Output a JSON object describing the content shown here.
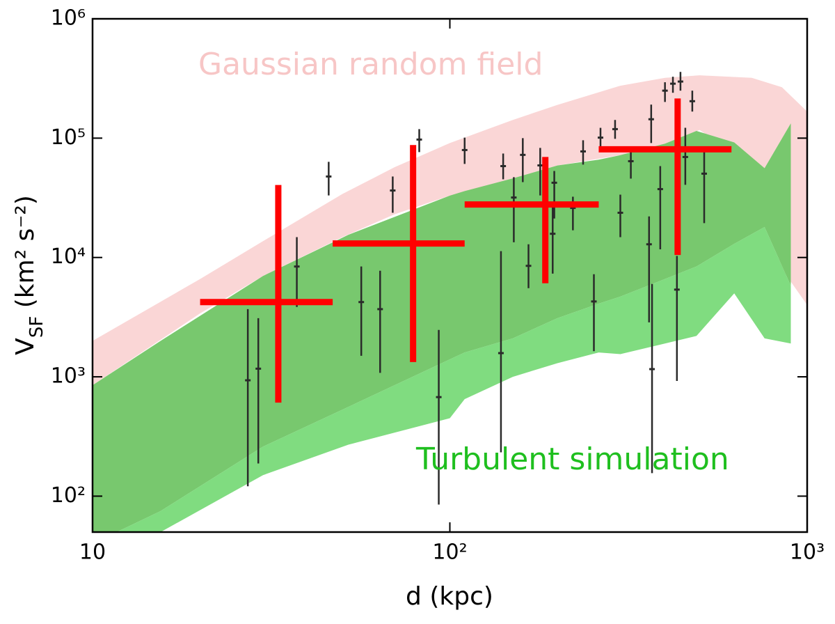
{
  "chart_data": {
    "type": "scatter",
    "x_label": "d (kpc)",
    "y_label": "V",
    "y_label_sub": "SF",
    "y_label_rest": " (km² s⁻²)",
    "log_scale": true,
    "xlim": [
      10,
      1000
    ],
    "ylim": [
      50,
      1000000
    ],
    "xticks": [
      10,
      {
        "value": 100,
        "label": "10²"
      },
      {
        "value": 1000,
        "label": "10³"
      }
    ],
    "yticks": [
      {
        "value": 100,
        "label": "10²"
      },
      {
        "value": 1000,
        "label": "10³"
      },
      {
        "value": 10000,
        "label": "10⁴"
      },
      {
        "value": 100000,
        "label": "10⁵"
      },
      {
        "value": 1000000,
        "label": "10⁶"
      }
    ],
    "annotations": [
      {
        "text": "Gaussian random field",
        "color": "#f7c6c6"
      },
      {
        "text": "Turbulent simulation",
        "color": "#1fbf1f"
      }
    ],
    "bands": [
      {
        "color": "#fad6d6",
        "x": [
          10,
          20,
          30,
          50,
          70,
          100,
          150,
          200,
          300,
          400,
          500,
          700,
          850,
          1000
        ],
        "upper": [
          2000,
          6600,
          13700,
          34000,
          57000,
          91000,
          142000,
          190000,
          275000,
          320000,
          336000,
          320000,
          267000,
          167000
        ],
        "lower": [
          850,
          3400,
          7000,
          14800,
          23000,
          33000,
          46000,
          59000,
          72000,
          90000,
          117000,
          60000,
          8000,
          4000
        ]
      },
      {
        "color": "#78c86e",
        "x": [
          10,
          15.5,
          30,
          52,
          100,
          110,
          150,
          200,
          261,
          300,
          400,
          490,
          625,
          760,
          900
        ],
        "upper": [
          850,
          2000,
          7000,
          15500,
          33000,
          36000,
          46000,
          59000,
          66000,
          72000,
          90000,
          115000,
          92000,
          56000,
          133000
        ],
        "lower": [
          40,
          75,
          260,
          560,
          1400,
          1600,
          2100,
          3100,
          4100,
          4700,
          6600,
          8400,
          13000,
          18000,
          5800
        ]
      },
      {
        "color": "#80dc80",
        "x": [
          10,
          15.5,
          30,
          52,
          100,
          110,
          150,
          200,
          261,
          300,
          400,
          490,
          625,
          760,
          900
        ],
        "upper": [
          40,
          75,
          260,
          560,
          1400,
          1600,
          2100,
          3100,
          4100,
          4700,
          6600,
          8400,
          13000,
          18000,
          5800
        ],
        "lower": [
          25,
          50,
          150,
          270,
          450,
          650,
          1000,
          1300,
          1600,
          1550,
          1900,
          2200,
          5000,
          2100,
          1900
        ]
      }
    ],
    "series": [
      {
        "color": "#2a2a2a",
        "x": [
          27.2,
          29.1,
          37.3,
          45.8,
          56.5,
          63.8,
          69.2,
          82.1,
          93.1,
          110,
          139,
          141,
          151,
          160,
          166,
          179,
          194,
          196,
          221,
          236,
          253,
          264,
          290,
          300,
          321,
          361,
          366,
          368,
          388,
          400,
          421,
          432,
          442,
          456,
          477,
          515
        ],
        "values": [
          935,
          1170,
          8400,
          47700,
          4230,
          3690,
          36400,
          97300,
          676,
          79500,
          1580,
          58300,
          31800,
          72400,
          8510,
          59100,
          15800,
          42300,
          26000,
          77400,
          4280,
          101000,
          119000,
          23700,
          64100,
          12900,
          144000,
          1160,
          37400,
          250000,
          286000,
          5380,
          298000,
          69500,
          204000,
          50400
        ],
        "y_low": [
          121,
          188,
          3850,
          33100,
          1500,
          1080,
          23700,
          76400,
          85,
          60800,
          233,
          45200,
          13400,
          42800,
          5530,
          33100,
          7330,
          21200,
          16900,
          60000,
          1640,
          85100,
          98700,
          14800,
          45800,
          2860,
          91000,
          156,
          11700,
          201000,
          240000,
          923,
          250000,
          40600,
          167000,
          19400
        ],
        "y_high": [
          3690,
          3100,
          14800,
          63300,
          8400,
          7740,
          47700,
          119000,
          2470,
          101000,
          11300,
          74300,
          47100,
          100000,
          12900,
          82800,
          27500,
          53100,
          32300,
          96000,
          7240,
          122000,
          142000,
          33600,
          82800,
          22100,
          191000,
          6000,
          58300,
          294000,
          327000,
          10300,
          359000,
          122000,
          250000,
          85100
        ]
      },
      {
        "color": "#ff0000",
        "x": [
          33.1,
          78.9,
          185,
          434
        ],
        "x_low": [
          20,
          47,
          110,
          261
        ],
        "x_high": [
          47,
          110,
          261,
          614
        ],
        "values": [
          4230,
          13100,
          27800,
          80600
        ],
        "y_low": [
          608,
          1330,
          6080,
          10500
        ],
        "y_high": [
          40500,
          87500,
          69500,
          215000
        ]
      }
    ]
  }
}
